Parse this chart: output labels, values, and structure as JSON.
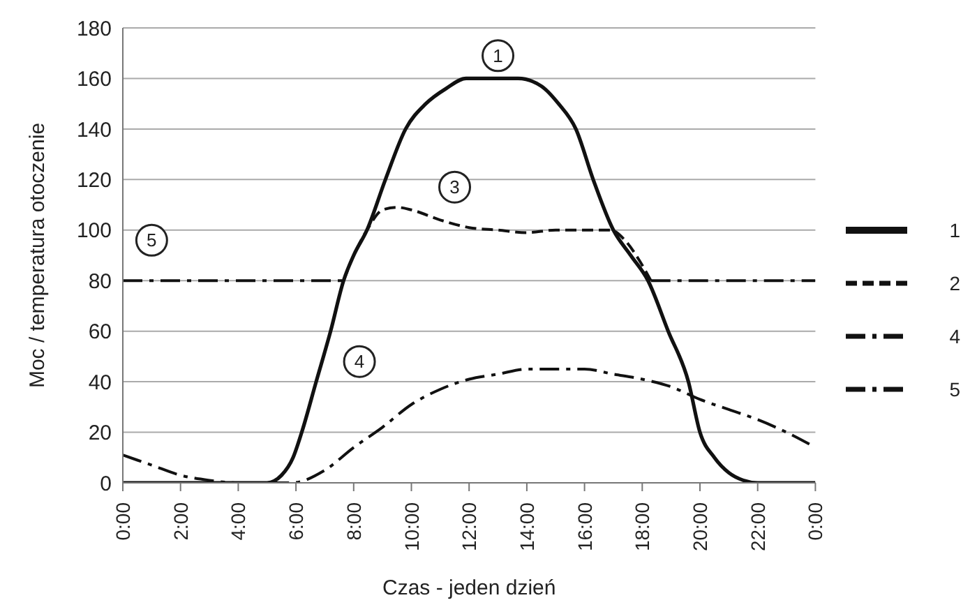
{
  "chart_data": {
    "type": "line",
    "xlabel": "Czas - jeden dzień",
    "ylabel": "Moc / temperatura otoczenie",
    "xlim": [
      0,
      24
    ],
    "xticks": [
      {
        "value": 0,
        "label": "0:00"
      },
      {
        "value": 2,
        "label": "2:00"
      },
      {
        "value": 4,
        "label": "4:00"
      },
      {
        "value": 6,
        "label": "6:00"
      },
      {
        "value": 8,
        "label": "8:00"
      },
      {
        "value": 10,
        "label": "10:00"
      },
      {
        "value": 12,
        "label": "12:00"
      },
      {
        "value": 14,
        "label": "14:00"
      },
      {
        "value": 16,
        "label": "16:00"
      },
      {
        "value": 18,
        "label": "18:00"
      },
      {
        "value": 20,
        "label": "20:00"
      },
      {
        "value": 22,
        "label": "22:00"
      },
      {
        "value": 24,
        "label": "0:00"
      }
    ],
    "ylim": [
      0,
      180
    ],
    "yticks": [
      0,
      20,
      40,
      60,
      80,
      100,
      120,
      140,
      160,
      180
    ],
    "grid": "y",
    "legend": "right",
    "marker": "none",
    "series": [
      {
        "name": "1",
        "color": "#111111",
        "line_style": "solid",
        "x": [
          0,
          4,
          5,
          5.5,
          5.9,
          6.2,
          6.7,
          7.2,
          7.65,
          8,
          8.46,
          9.1,
          9.8,
          10.5,
          11.2,
          11.9,
          12.5,
          13.2,
          13.7,
          14.5,
          15.1,
          15.7,
          16.3,
          17,
          17.6,
          18.2,
          18.9,
          19.6,
          20,
          20.5,
          21,
          21.5,
          22,
          24
        ],
        "values": [
          0,
          0,
          0,
          3,
          10,
          20,
          40,
          60,
          80,
          90,
          100,
          120,
          140,
          150,
          156,
          160,
          160,
          160,
          160,
          157,
          150,
          140,
          120,
          100,
          90,
          80,
          60,
          40,
          20,
          10,
          4,
          1,
          0,
          0
        ]
      },
      {
        "name": "2",
        "color": "#111111",
        "line_style": "dashed",
        "x": [
          7.65,
          8,
          8.46,
          9,
          9.5,
          10,
          11,
          12,
          13,
          14,
          15,
          16,
          16.9,
          17.4,
          17.9,
          18.3
        ],
        "values": [
          80,
          90,
          100,
          108,
          109,
          108,
          104,
          101,
          100,
          99,
          100,
          100,
          100,
          96,
          88,
          80
        ]
      },
      {
        "name": "4",
        "color": "#111111",
        "line_style": "dashdot",
        "x": [
          0,
          1,
          2,
          3,
          4,
          5,
          5.85,
          7,
          8,
          9,
          10,
          11,
          12,
          13,
          14,
          15,
          16,
          17,
          18,
          19,
          20,
          21,
          22,
          23,
          24
        ],
        "values": [
          11,
          7,
          3,
          1,
          0,
          0,
          0,
          5,
          14,
          22,
          31,
          37,
          41,
          43,
          45,
          45,
          45,
          43,
          41,
          38,
          33,
          29,
          25,
          20,
          14
        ]
      },
      {
        "name": "5",
        "color": "#111111",
        "line_style": "dashdot",
        "x": [
          0,
          7.6,
          12,
          18.3,
          24
        ],
        "values": [
          80,
          80,
          null,
          80,
          80
        ]
      }
    ],
    "annotations": [
      {
        "text": "1",
        "x": 13,
        "y": 169
      },
      {
        "text": "3",
        "x": 11.5,
        "y": 117
      },
      {
        "text": "4",
        "x": 8.2,
        "y": 48
      },
      {
        "text": "5",
        "x": 1,
        "y": 96
      }
    ]
  }
}
